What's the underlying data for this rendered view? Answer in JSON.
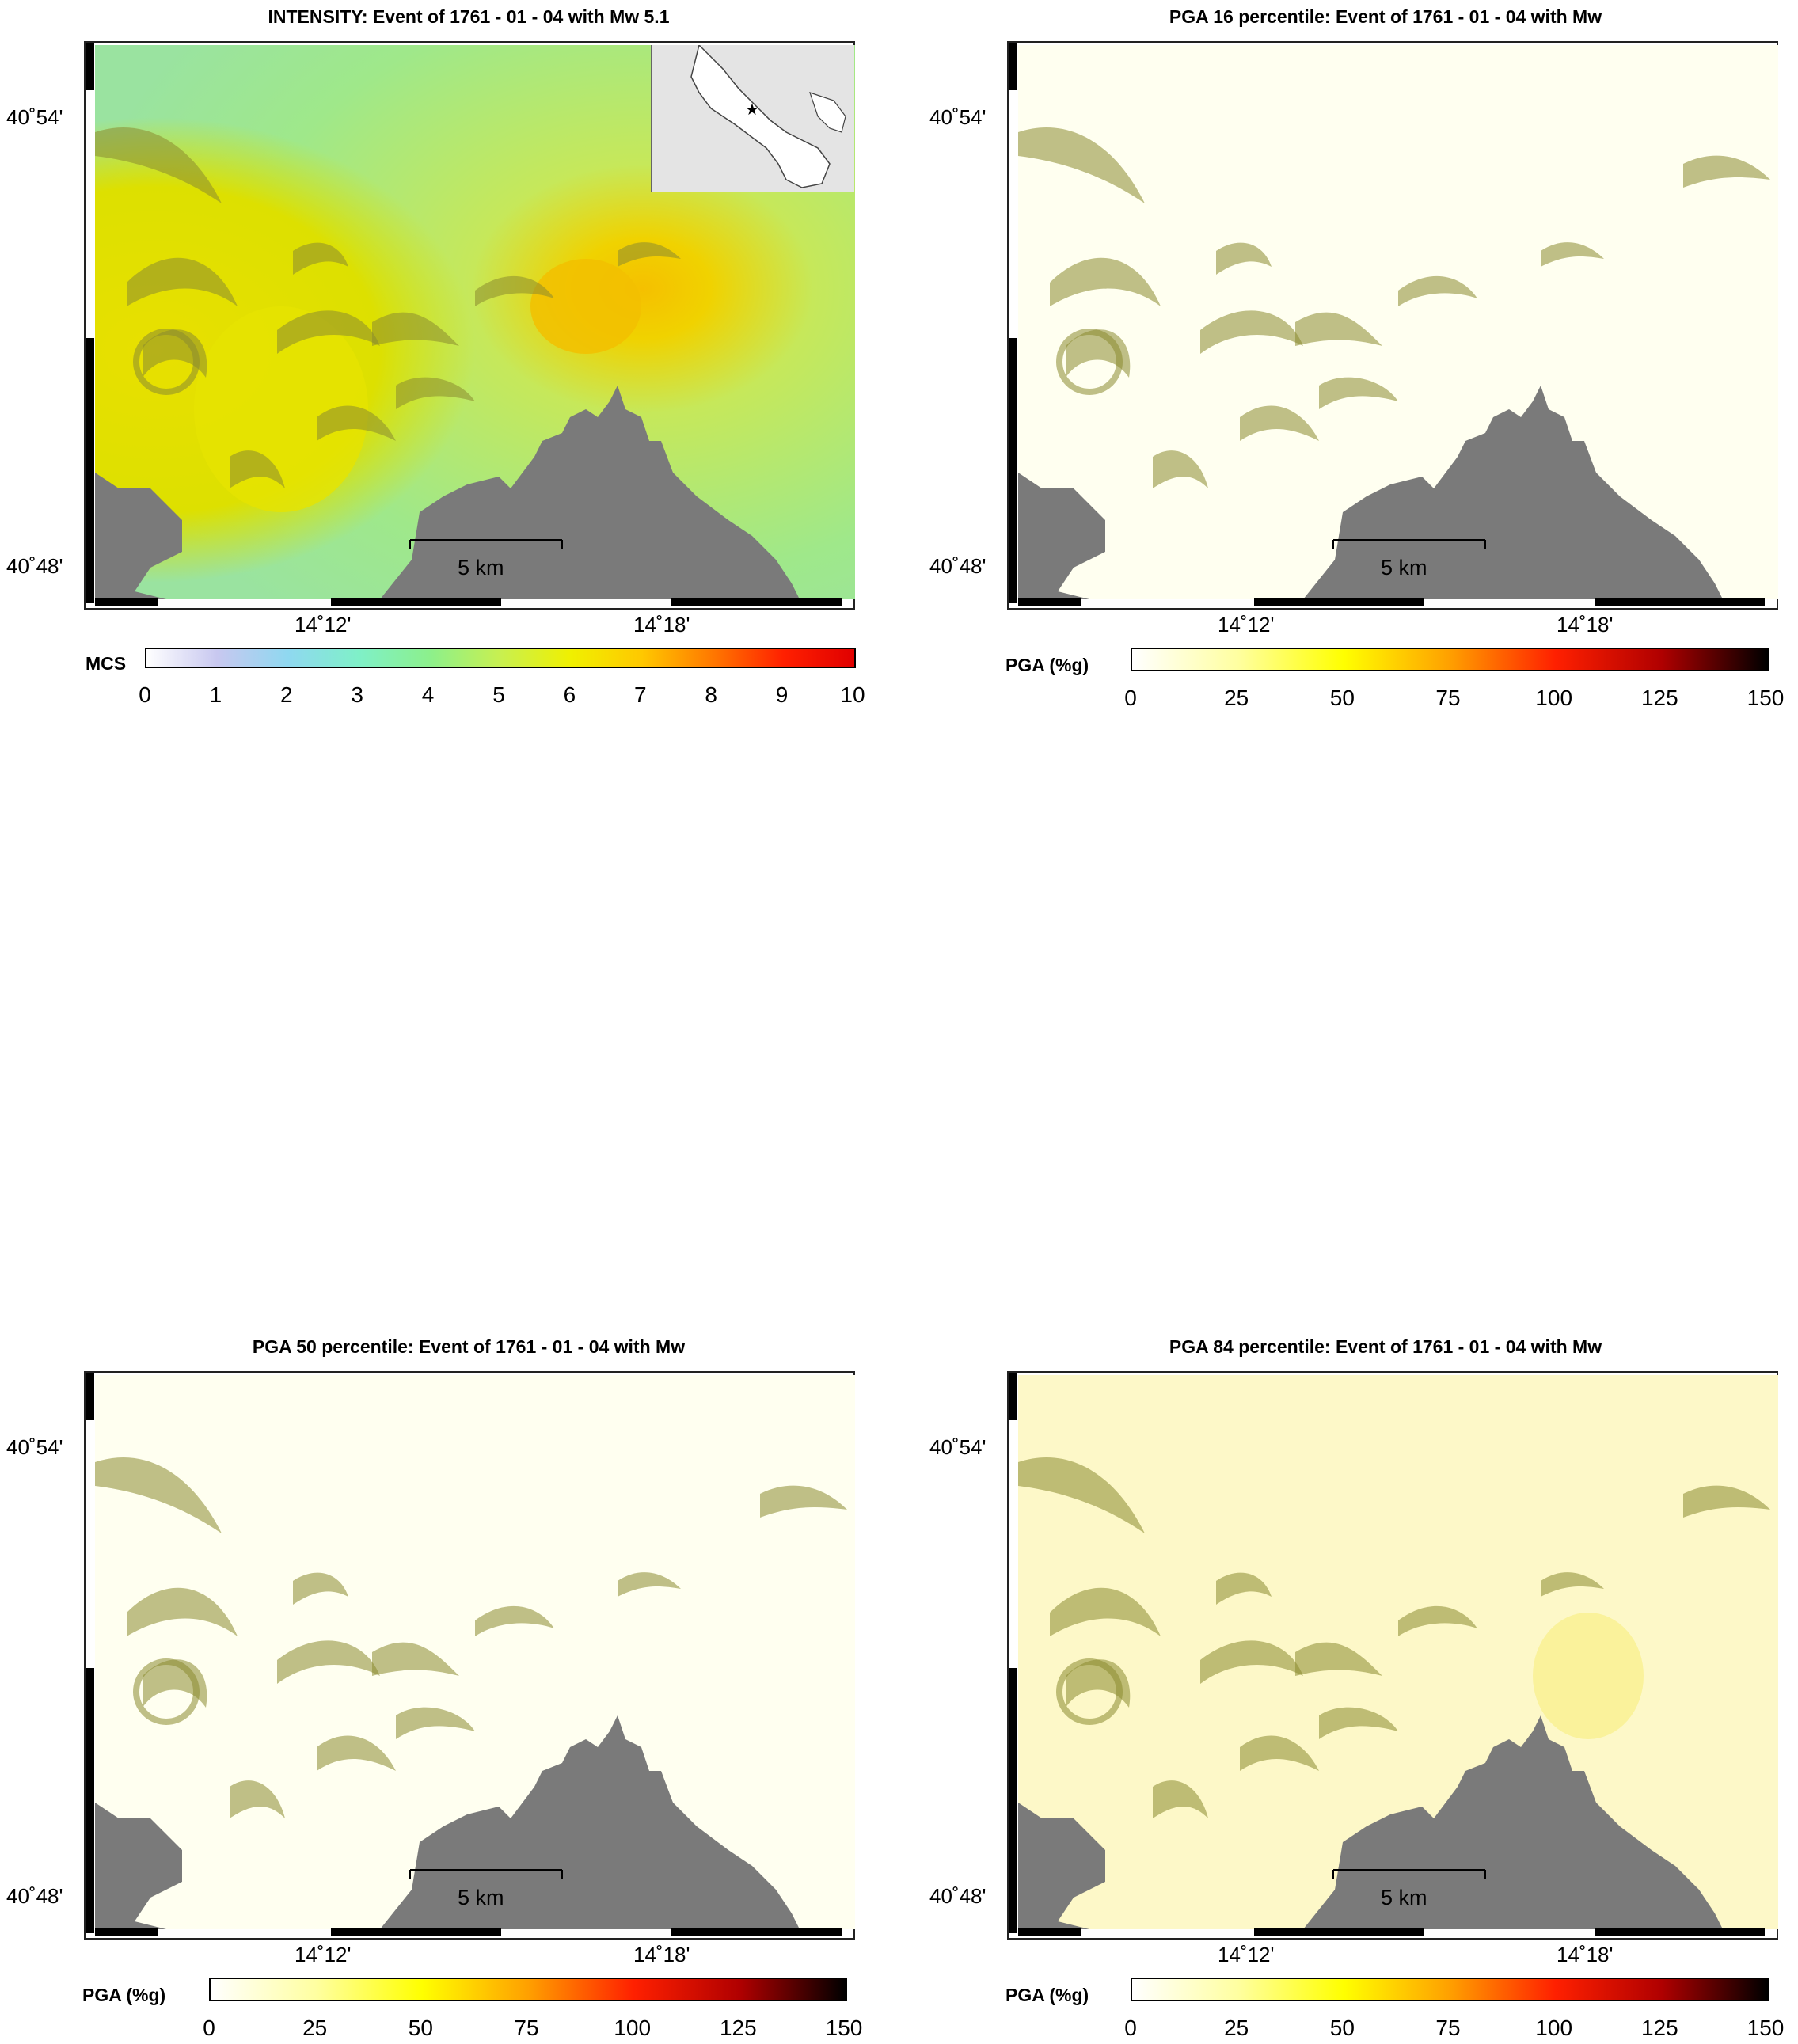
{
  "panels": [
    {
      "title": "INTENSITY: Event of 1761 - 01 - 04 with Mw 5.1",
      "lat_ticks": [
        "40˚54'",
        "40˚48'"
      ],
      "lon_ticks": [
        "14˚12'",
        "14˚18'"
      ],
      "scale_label": "5 km",
      "colorbar": {
        "label": "MCS",
        "ticks": [
          "0",
          "1",
          "2",
          "3",
          "4",
          "5",
          "6",
          "7",
          "8",
          "9",
          "10"
        ],
        "colors": [
          "#ffffff",
          "#c8c8f0",
          "#8fd8f0",
          "#7ff0c8",
          "#8cf08c",
          "#c8f050",
          "#f0f000",
          "#ffc800",
          "#ff7800",
          "#ff2000",
          "#e00000"
        ]
      },
      "palette": "intensity"
    },
    {
      "title": "PGA 16 percentile: Event of 1761 - 01 - 04 with Mw",
      "lat_ticks": [
        "40˚54'",
        "40˚48'"
      ],
      "lon_ticks": [
        "14˚12'",
        "14˚18'"
      ],
      "scale_label": "5 km",
      "colorbar": {
        "label": "PGA (%g)",
        "ticks": [
          "0",
          "25",
          "50",
          "75",
          "100",
          "125",
          "150"
        ],
        "colors": [
          "#ffffff",
          "#ffffa0",
          "#ffff00",
          "#ffa000",
          "#ff2000",
          "#b00000",
          "#000000"
        ]
      },
      "palette": "pga16"
    },
    {
      "title": "PGA 50 percentile: Event of 1761 - 01 - 04 with Mw",
      "lat_ticks": [
        "40˚54'",
        "40˚48'"
      ],
      "lon_ticks": [
        "14˚12'",
        "14˚18'"
      ],
      "scale_label": "5 km",
      "colorbar": {
        "label": "PGA (%g)",
        "ticks": [
          "0",
          "25",
          "50",
          "75",
          "100",
          "125",
          "150"
        ],
        "colors": [
          "#ffffff",
          "#ffffa0",
          "#ffff00",
          "#ffa000",
          "#ff2000",
          "#b00000",
          "#000000"
        ]
      },
      "palette": "pga50"
    },
    {
      "title": "PGA 84 percentile: Event of 1761 - 01 - 04 with Mw",
      "lat_ticks": [
        "40˚54'",
        "40˚48'"
      ],
      "lon_ticks": [
        "14˚12'",
        "14˚18'"
      ],
      "scale_label": "5 km",
      "colorbar": {
        "label": "PGA (%g)",
        "ticks": [
          "0",
          "25",
          "50",
          "75",
          "100",
          "125",
          "150"
        ],
        "colors": [
          "#ffffff",
          "#ffffa0",
          "#ffff00",
          "#ffa000",
          "#ff2000",
          "#b00000",
          "#000000"
        ]
      },
      "palette": "pga84"
    }
  ],
  "colors": {
    "sea": "#7a7a7a",
    "relief": "#8a8a30"
  }
}
